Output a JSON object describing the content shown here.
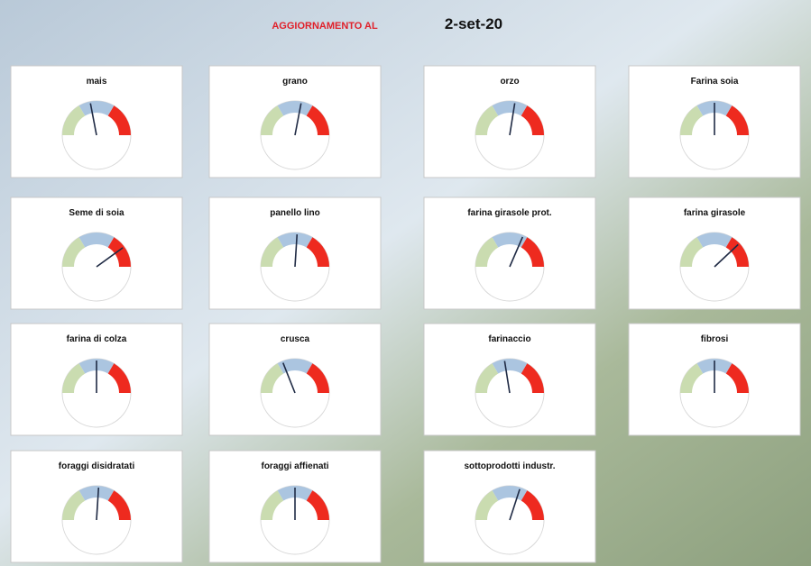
{
  "header": {
    "label": "AGGIORNAMENTO AL",
    "date": "2-set-20"
  },
  "chart_data": [
    {
      "type": "gauge",
      "title": "mais",
      "value": 44,
      "ylim": [
        0,
        100
      ],
      "bands": [
        {
          "to": 33,
          "color": "#cadcb0"
        },
        {
          "to": 67,
          "color": "#abc5e0"
        },
        {
          "to": 100,
          "color": "#ee2a1f"
        }
      ]
    },
    {
      "type": "gauge",
      "title": "grano",
      "value": 56,
      "ylim": [
        0,
        100
      ],
      "bands": [
        {
          "to": 33,
          "color": "#cadcb0"
        },
        {
          "to": 67,
          "color": "#abc5e0"
        },
        {
          "to": 100,
          "color": "#ee2a1f"
        }
      ]
    },
    {
      "type": "gauge",
      "title": "orzo",
      "value": 55,
      "ylim": [
        0,
        100
      ],
      "bands": [
        {
          "to": 33,
          "color": "#cadcb0"
        },
        {
          "to": 67,
          "color": "#abc5e0"
        },
        {
          "to": 100,
          "color": "#ee2a1f"
        }
      ]
    },
    {
      "type": "gauge",
      "title": "Farina soia",
      "value": 50,
      "ylim": [
        0,
        100
      ],
      "bands": [
        {
          "to": 33,
          "color": "#cadcb0"
        },
        {
          "to": 67,
          "color": "#abc5e0"
        },
        {
          "to": 100,
          "color": "#ee2a1f"
        }
      ]
    },
    {
      "type": "gauge",
      "title": "Seme di soia",
      "value": 80,
      "ylim": [
        0,
        100
      ],
      "bands": [
        {
          "to": 33,
          "color": "#cadcb0"
        },
        {
          "to": 67,
          "color": "#abc5e0"
        },
        {
          "to": 100,
          "color": "#ee2a1f"
        }
      ]
    },
    {
      "type": "gauge",
      "title": "panello lino",
      "value": 52,
      "ylim": [
        0,
        100
      ],
      "bands": [
        {
          "to": 33,
          "color": "#cadcb0"
        },
        {
          "to": 67,
          "color": "#abc5e0"
        },
        {
          "to": 100,
          "color": "#ee2a1f"
        }
      ]
    },
    {
      "type": "gauge",
      "title": "farina girasole prot.",
      "value": 63,
      "ylim": [
        0,
        100
      ],
      "bands": [
        {
          "to": 33,
          "color": "#cadcb0"
        },
        {
          "to": 67,
          "color": "#abc5e0"
        },
        {
          "to": 100,
          "color": "#ee2a1f"
        }
      ]
    },
    {
      "type": "gauge",
      "title": "farina girasole",
      "value": 76,
      "ylim": [
        0,
        100
      ],
      "bands": [
        {
          "to": 33,
          "color": "#cadcb0"
        },
        {
          "to": 67,
          "color": "#abc5e0"
        },
        {
          "to": 100,
          "color": "#ee2a1f"
        }
      ]
    },
    {
      "type": "gauge",
      "title": "farina di colza",
      "value": 50,
      "ylim": [
        0,
        100
      ],
      "bands": [
        {
          "to": 33,
          "color": "#cadcb0"
        },
        {
          "to": 67,
          "color": "#abc5e0"
        },
        {
          "to": 100,
          "color": "#ee2a1f"
        }
      ]
    },
    {
      "type": "gauge",
      "title": "crusca",
      "value": 38,
      "ylim": [
        0,
        100
      ],
      "bands": [
        {
          "to": 33,
          "color": "#cadcb0"
        },
        {
          "to": 67,
          "color": "#abc5e0"
        },
        {
          "to": 100,
          "color": "#ee2a1f"
        }
      ]
    },
    {
      "type": "gauge",
      "title": "farinaccio",
      "value": 45,
      "ylim": [
        0,
        100
      ],
      "bands": [
        {
          "to": 33,
          "color": "#cadcb0"
        },
        {
          "to": 67,
          "color": "#abc5e0"
        },
        {
          "to": 100,
          "color": "#ee2a1f"
        }
      ]
    },
    {
      "type": "gauge",
      "title": "fibrosi",
      "value": 50,
      "ylim": [
        0,
        100
      ],
      "bands": [
        {
          "to": 33,
          "color": "#cadcb0"
        },
        {
          "to": 67,
          "color": "#abc5e0"
        },
        {
          "to": 100,
          "color": "#ee2a1f"
        }
      ]
    },
    {
      "type": "gauge",
      "title": "foraggi disidratati",
      "value": 52,
      "ylim": [
        0,
        100
      ],
      "bands": [
        {
          "to": 33,
          "color": "#cadcb0"
        },
        {
          "to": 67,
          "color": "#abc5e0"
        },
        {
          "to": 100,
          "color": "#ee2a1f"
        }
      ]
    },
    {
      "type": "gauge",
      "title": "foraggi affienati",
      "value": 50,
      "ylim": [
        0,
        100
      ],
      "bands": [
        {
          "to": 33,
          "color": "#cadcb0"
        },
        {
          "to": 67,
          "color": "#abc5e0"
        },
        {
          "to": 100,
          "color": "#ee2a1f"
        }
      ]
    },
    {
      "type": "gauge",
      "title": "sottoprodotti industr.",
      "value": 60,
      "ylim": [
        0,
        100
      ],
      "bands": [
        {
          "to": 33,
          "color": "#cadcb0"
        },
        {
          "to": 67,
          "color": "#abc5e0"
        },
        {
          "to": 100,
          "color": "#ee2a1f"
        }
      ]
    }
  ]
}
